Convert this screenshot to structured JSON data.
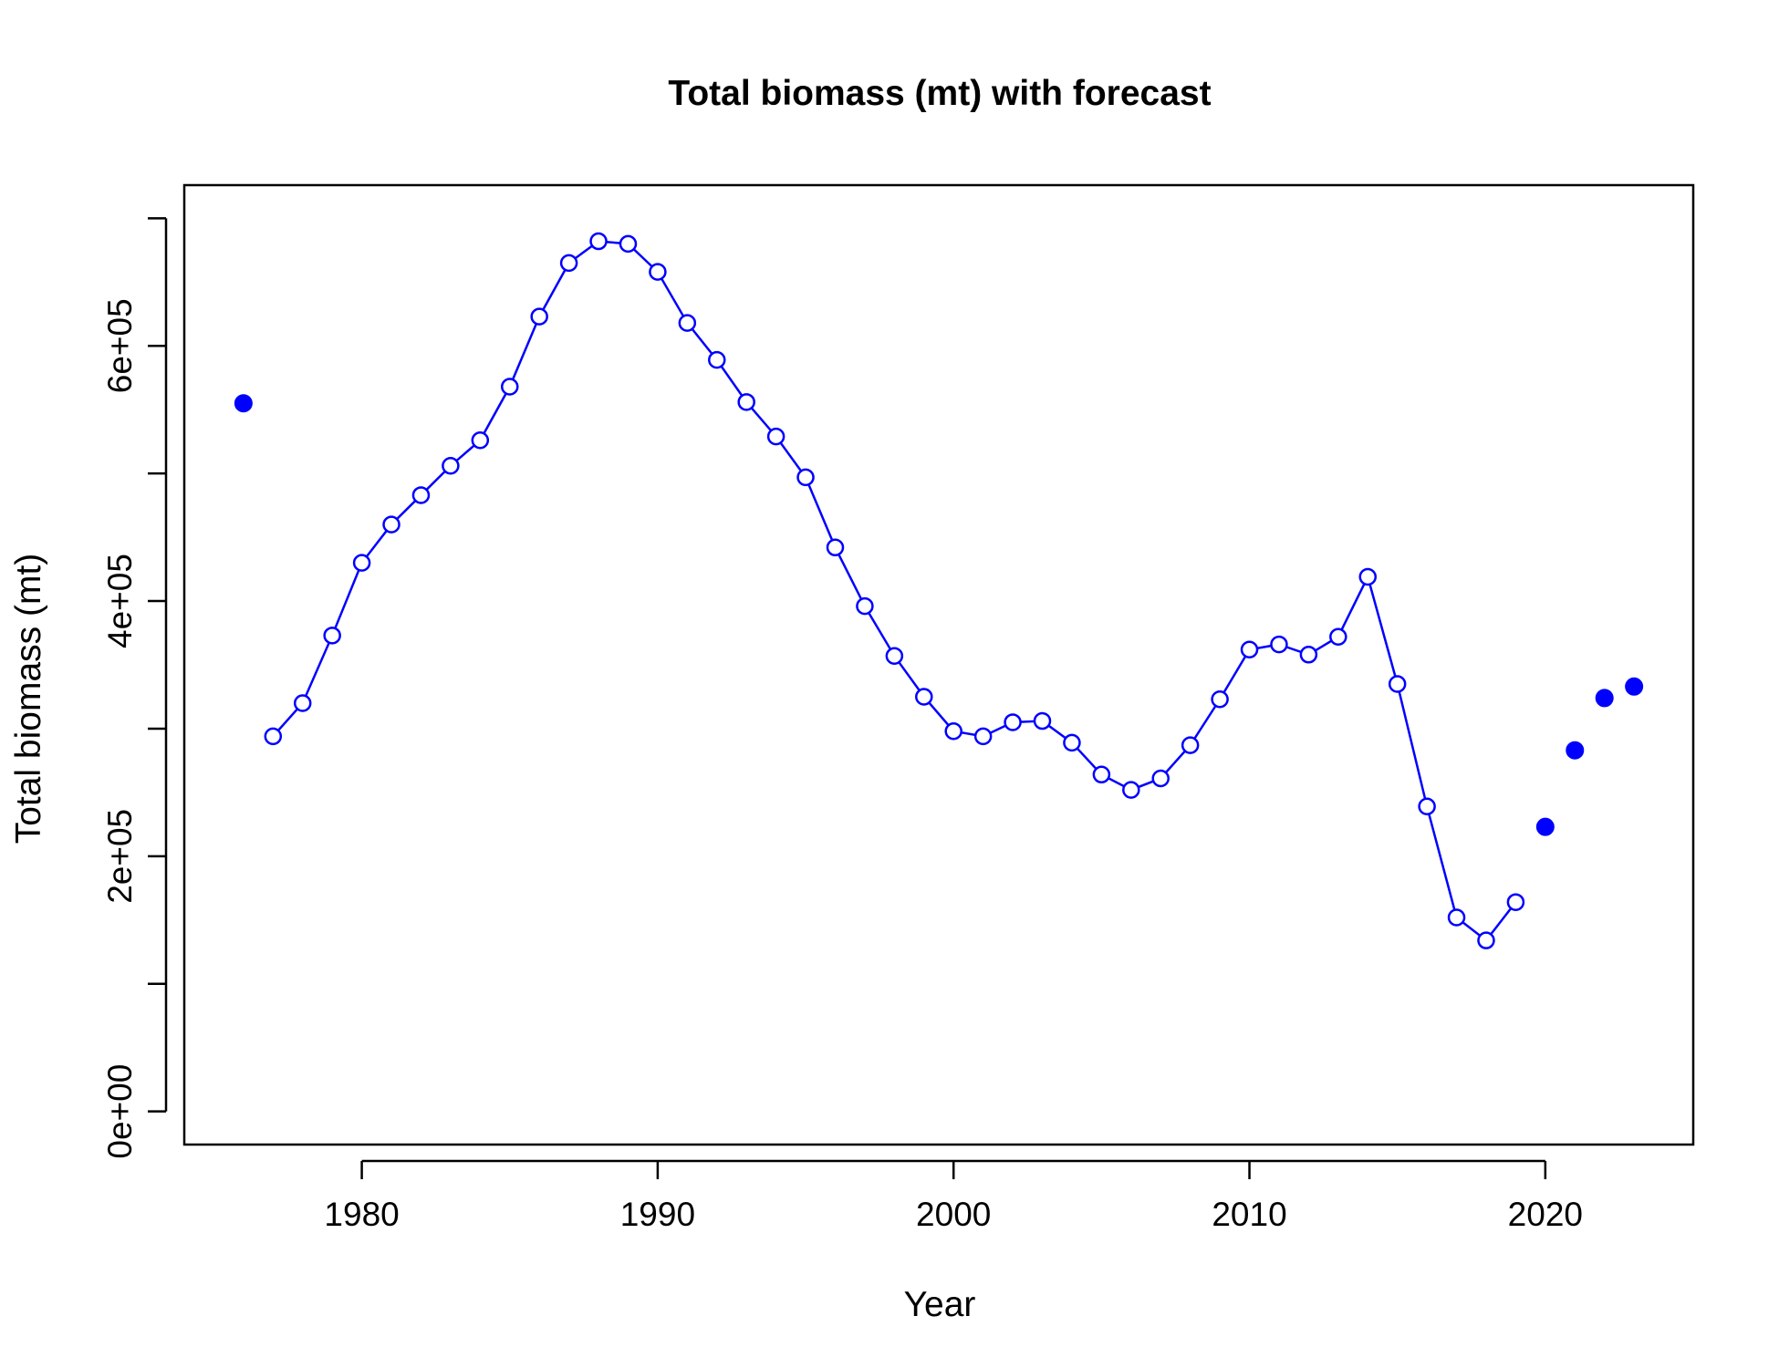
{
  "chart_data": {
    "type": "line",
    "title": "Total biomass (mt) with forecast",
    "xlabel": "Year",
    "ylabel": "Total biomass (mt)",
    "xlim": [
      1974,
      2025
    ],
    "ylim": [
      0,
      700000
    ],
    "x_ticks": [
      1980,
      1990,
      2000,
      2010,
      2020
    ],
    "x_tick_labels": [
      "1980",
      "1990",
      "2000",
      "2010",
      "2020"
    ],
    "y_ticks": [
      0,
      100000,
      200000,
      300000,
      400000,
      500000,
      600000,
      700000
    ],
    "y_tick_labels": [
      "0e+00",
      "",
      "2e+05",
      "",
      "4e+05",
      "",
      "6e+05",
      ""
    ],
    "grid": false,
    "color": "#0000FF",
    "series": [
      {
        "style": "filled-point",
        "x": [
          1976
        ],
        "y": [
          555000
        ]
      },
      {
        "style": "line-with-open-points",
        "x": [
          1977,
          1978,
          1979,
          1980,
          1981,
          1982,
          1983,
          1984,
          1985,
          1986,
          1987,
          1988,
          1989,
          1990,
          1991,
          1992,
          1993,
          1994,
          1995,
          1996,
          1997,
          1998,
          1999,
          2000,
          2001,
          2002,
          2003,
          2004,
          2005,
          2006,
          2007,
          2008,
          2009,
          2010,
          2011,
          2012,
          2013,
          2014,
          2015,
          2016,
          2017,
          2018,
          2019
        ],
        "y": [
          294000,
          320000,
          373000,
          430000,
          460000,
          483000,
          506000,
          526000,
          568000,
          623000,
          665000,
          682000,
          680000,
          658000,
          618000,
          589000,
          556000,
          529000,
          497000,
          442000,
          396000,
          357000,
          325000,
          298000,
          294000,
          305000,
          306000,
          289000,
          264000,
          252000,
          261000,
          287000,
          323000,
          362000,
          366000,
          358000,
          372000,
          419000,
          335000,
          239000,
          152000,
          134000,
          164000
        ]
      },
      {
        "style": "filled-point",
        "x": [
          2020,
          2021,
          2022,
          2023
        ],
        "y": [
          223000,
          283000,
          324000,
          333000
        ]
      }
    ]
  }
}
